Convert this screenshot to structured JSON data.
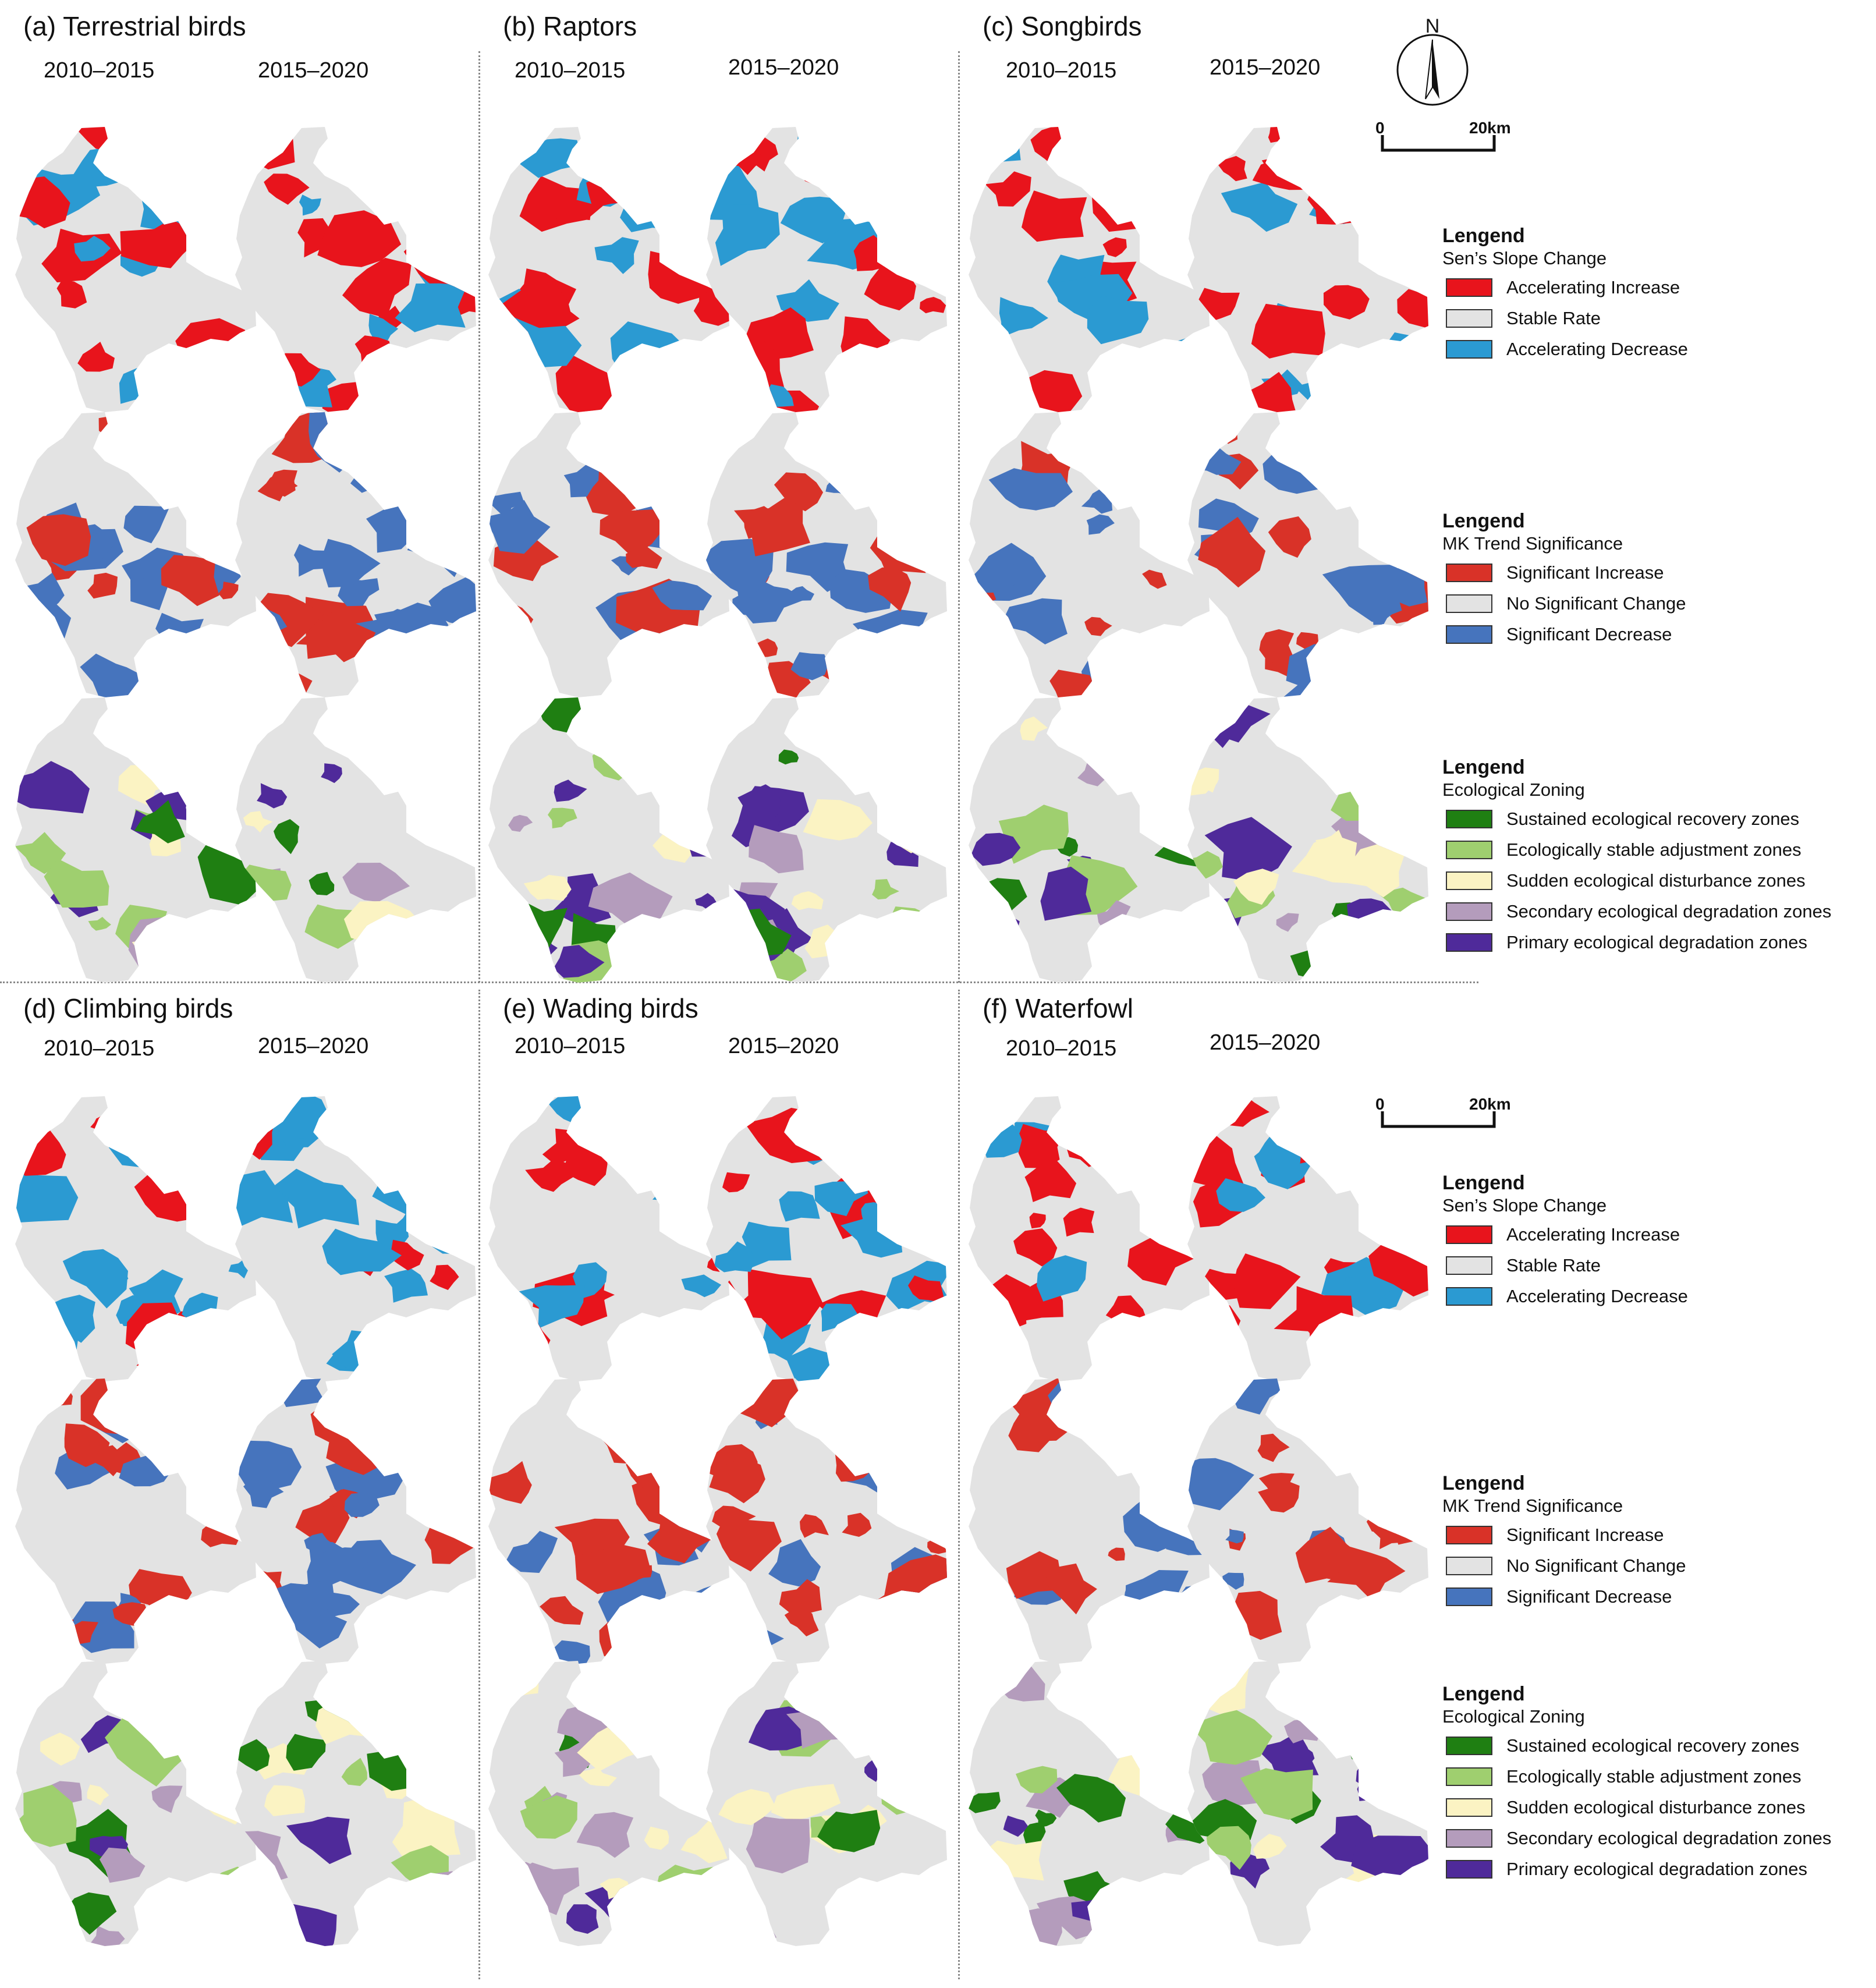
{
  "panels": [
    {
      "id": "a",
      "title": "(a) Terrestrial birds",
      "period_1": "2010–2015",
      "period_2": "2015–2020"
    },
    {
      "id": "b",
      "title": "(b) Raptors",
      "period_1": "2010–2015",
      "period_2": "2015–2020"
    },
    {
      "id": "c",
      "title": "(c) Songbirds",
      "period_1": "2010–2015",
      "period_2": "2015–2020"
    },
    {
      "id": "d",
      "title": "(d) Climbing birds",
      "period_1": "2010–2015",
      "period_2": "2015–2020"
    },
    {
      "id": "e",
      "title": "(e) Wading birds",
      "period_1": "2010–2015",
      "period_2": "2015–2020"
    },
    {
      "id": "f",
      "title": "(f) Waterfowl",
      "period_1": "2010–2015",
      "period_2": "2015–2020"
    }
  ],
  "north_arrow": {
    "label": "N",
    "icon": "north-arrow-icon"
  },
  "scale_bar": {
    "start": "0",
    "end": "20km"
  },
  "legends": {
    "sen": {
      "heading": "Lengend",
      "subtitle": "Sen’s Slope Change",
      "items": [
        {
          "label": "Accelerating Increase",
          "color": "#e8141c"
        },
        {
          "label": "Stable Rate",
          "color": "#e3e3e3"
        },
        {
          "label": "Accelerating Decrease",
          "color": "#2b9ad2"
        }
      ]
    },
    "mk": {
      "heading": "Lengend",
      "subtitle": "MK Trend Significance",
      "items": [
        {
          "label": "Significant Increase",
          "color": "#d93228"
        },
        {
          "label": "No Significant Change",
          "color": "#e3e3e3"
        },
        {
          "label": "Significant Decrease",
          "color": "#4674bd"
        }
      ]
    },
    "zoning": {
      "heading": "Lengend",
      "subtitle": "Ecological Zoning",
      "items": [
        {
          "label": "Sustained ecological recovery zones",
          "color": "#1f7f12"
        },
        {
          "label": "Ecologically stable adjustment zones",
          "color": "#9fcf6f"
        },
        {
          "label": "Sudden ecological disturbance zones",
          "color": "#fbf3c3"
        },
        {
          "label": "Secondary ecological degradation zones",
          "color": "#b49cbc"
        },
        {
          "label": "Primary ecological degradation zones",
          "color": "#4f2a9a"
        }
      ]
    }
  }
}
